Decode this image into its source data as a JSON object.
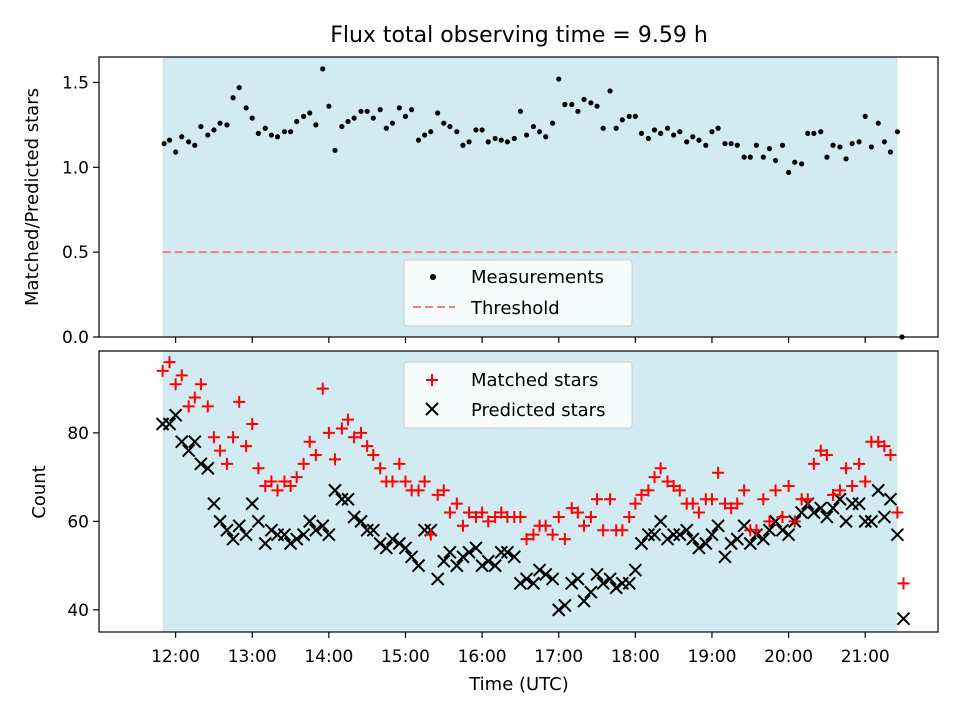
{
  "colors": {
    "night_band": "#add8e6",
    "measurement": "#000000",
    "threshold": "#f08080",
    "matched": "#ff0000",
    "predicted": "#000000"
  },
  "chart_data": [
    {
      "type": "scatter",
      "title": "Flux total observing time = 9.59 h",
      "xlabel": "",
      "ylabel": "Matched/Predicted stars",
      "x_unit": "hours UTC (decimal)",
      "xlim": [
        11.0,
        21.95
      ],
      "ylim": [
        0,
        1.65
      ],
      "yticks": [
        0.0,
        0.5,
        1.0,
        1.5
      ],
      "ytick_labels": [
        "0.0",
        "0.5",
        "1.0",
        "1.5"
      ],
      "shaded_interval": [
        11.83,
        21.42
      ],
      "grid": false,
      "legend": {
        "position": "lower center",
        "entries": [
          "Measurements",
          "Threshold"
        ]
      },
      "threshold": {
        "name": "Threshold",
        "value": 0.5,
        "x_range": [
          11.83,
          21.42
        ]
      },
      "series": [
        {
          "name": "Measurements",
          "x": [
            11.85,
            11.92,
            12.0,
            12.08,
            12.17,
            12.25,
            12.33,
            12.42,
            12.5,
            12.58,
            12.67,
            12.75,
            12.83,
            12.92,
            13.0,
            13.08,
            13.17,
            13.25,
            13.33,
            13.42,
            13.5,
            13.58,
            13.67,
            13.75,
            13.83,
            13.92,
            14.0,
            14.08,
            14.17,
            14.25,
            14.33,
            14.42,
            14.5,
            14.58,
            14.67,
            14.75,
            14.83,
            14.92,
            15.0,
            15.08,
            15.17,
            15.25,
            15.33,
            15.42,
            15.5,
            15.58,
            15.67,
            15.75,
            15.83,
            15.92,
            16.0,
            16.08,
            16.17,
            16.25,
            16.33,
            16.42,
            16.5,
            16.58,
            16.67,
            16.75,
            16.83,
            16.92,
            17.0,
            17.08,
            17.17,
            17.25,
            17.33,
            17.42,
            17.5,
            17.58,
            17.67,
            17.75,
            17.83,
            17.92,
            18.0,
            18.08,
            18.17,
            18.25,
            18.33,
            18.42,
            18.5,
            18.58,
            18.67,
            18.75,
            18.83,
            18.92,
            19.0,
            19.08,
            19.17,
            19.25,
            19.33,
            19.42,
            19.5,
            19.58,
            19.67,
            19.75,
            19.83,
            19.92,
            20.0,
            20.08,
            20.17,
            20.25,
            20.33,
            20.42,
            20.5,
            20.58,
            20.67,
            20.75,
            20.83,
            20.92,
            21.0,
            21.08,
            21.17,
            21.25,
            21.33,
            21.42,
            21.48
          ],
          "y": [
            1.14,
            1.16,
            1.09,
            1.18,
            1.15,
            1.13,
            1.24,
            1.19,
            1.22,
            1.26,
            1.25,
            1.41,
            1.47,
            1.35,
            1.29,
            1.2,
            1.23,
            1.19,
            1.18,
            1.21,
            1.21,
            1.27,
            1.3,
            1.32,
            1.25,
            1.58,
            1.36,
            1.1,
            1.24,
            1.27,
            1.29,
            1.33,
            1.33,
            1.29,
            1.34,
            1.23,
            1.26,
            1.35,
            1.3,
            1.34,
            1.16,
            1.19,
            1.21,
            1.32,
            1.26,
            1.24,
            1.21,
            1.13,
            1.15,
            1.22,
            1.22,
            1.15,
            1.17,
            1.16,
            1.15,
            1.17,
            1.33,
            1.19,
            1.24,
            1.21,
            1.18,
            1.26,
            1.52,
            1.37,
            1.37,
            1.33,
            1.4,
            1.38,
            1.36,
            1.23,
            1.45,
            1.23,
            1.28,
            1.3,
            1.3,
            1.2,
            1.17,
            1.22,
            1.2,
            1.23,
            1.19,
            1.21,
            1.15,
            1.18,
            1.16,
            1.13,
            1.21,
            1.23,
            1.14,
            1.14,
            1.13,
            1.06,
            1.06,
            1.13,
            1.06,
            1.11,
            1.04,
            1.13,
            0.97,
            1.03,
            1.02,
            1.2,
            1.2,
            1.21,
            1.06,
            1.13,
            1.12,
            1.05,
            1.14,
            1.15,
            1.3,
            1.12,
            1.26,
            1.15,
            1.09,
            1.21,
            0.0
          ]
        }
      ]
    },
    {
      "type": "scatter",
      "title": "",
      "xlabel": "Time (UTC)",
      "ylabel": "Count",
      "x_unit": "hours UTC (decimal)",
      "xlim": [
        11.0,
        21.95
      ],
      "ylim": [
        35,
        98.5
      ],
      "xticks": [
        12,
        13,
        14,
        15,
        16,
        17,
        18,
        19,
        20,
        21
      ],
      "xtick_labels": [
        "12:00",
        "13:00",
        "14:00",
        "15:00",
        "16:00",
        "17:00",
        "18:00",
        "19:00",
        "20:00",
        "21:00"
      ],
      "yticks": [
        40,
        60,
        80
      ],
      "ytick_labels": [
        "40",
        "60",
        "80"
      ],
      "shaded_interval": [
        11.83,
        21.42
      ],
      "grid": false,
      "legend": {
        "position": "upper center",
        "entries": [
          "Matched stars",
          "Predicted stars"
        ]
      },
      "series": [
        {
          "name": "Matched stars",
          "marker": "+",
          "x": [
            11.83,
            11.92,
            12.0,
            12.08,
            12.17,
            12.25,
            12.33,
            12.42,
            12.5,
            12.58,
            12.67,
            12.75,
            12.83,
            12.92,
            13.0,
            13.08,
            13.17,
            13.25,
            13.33,
            13.42,
            13.5,
            13.58,
            13.67,
            13.75,
            13.83,
            13.92,
            14.0,
            14.08,
            14.17,
            14.25,
            14.33,
            14.42,
            14.5,
            14.58,
            14.67,
            14.75,
            14.83,
            14.92,
            15.0,
            15.08,
            15.17,
            15.25,
            15.33,
            15.42,
            15.5,
            15.58,
            15.67,
            15.75,
            15.83,
            15.92,
            16.0,
            16.08,
            16.17,
            16.25,
            16.33,
            16.42,
            16.5,
            16.58,
            16.67,
            16.75,
            16.83,
            16.92,
            17.0,
            17.08,
            17.17,
            17.25,
            17.33,
            17.42,
            17.5,
            17.58,
            17.67,
            17.75,
            17.83,
            17.92,
            18.0,
            18.08,
            18.17,
            18.25,
            18.33,
            18.42,
            18.5,
            18.58,
            18.67,
            18.75,
            18.83,
            18.92,
            19.0,
            19.08,
            19.17,
            19.25,
            19.33,
            19.42,
            19.5,
            19.58,
            19.67,
            19.75,
            19.83,
            19.92,
            20.0,
            20.08,
            20.17,
            20.25,
            20.33,
            20.42,
            20.5,
            20.58,
            20.67,
            20.75,
            20.83,
            20.92,
            21.0,
            21.08,
            21.17,
            21.25,
            21.33,
            21.42,
            21.5
          ],
          "y": [
            94,
            96,
            91,
            93,
            86,
            88,
            91,
            86,
            79,
            76,
            73,
            79,
            87,
            77,
            82,
            72,
            68,
            69,
            67,
            69,
            68,
            70,
            73,
            78,
            75,
            90,
            80,
            74,
            81,
            83,
            79,
            80,
            77,
            75,
            72,
            69,
            69,
            73,
            69,
            67,
            67,
            69,
            57,
            66,
            67,
            62,
            64,
            59,
            62,
            61,
            62,
            60,
            61,
            62,
            61,
            61,
            61,
            56,
            57,
            59,
            59,
            57,
            61,
            56,
            63,
            62,
            59,
            61,
            65,
            58,
            65,
            58,
            58,
            61,
            64,
            66,
            67,
            70,
            72,
            69,
            68,
            67,
            64,
            64,
            62,
            65,
            65,
            71,
            64,
            63,
            64,
            67,
            58,
            58,
            65,
            60,
            67,
            61,
            68,
            60,
            65,
            65,
            73,
            76,
            75,
            66,
            67,
            72,
            68,
            73,
            69,
            78,
            78,
            77,
            75,
            62,
            46
          ]
        },
        {
          "name": "Predicted stars",
          "marker": "x",
          "x": [
            11.83,
            11.92,
            12.0,
            12.08,
            12.17,
            12.25,
            12.33,
            12.42,
            12.5,
            12.58,
            12.67,
            12.75,
            12.83,
            12.92,
            13.0,
            13.08,
            13.17,
            13.25,
            13.33,
            13.42,
            13.5,
            13.58,
            13.67,
            13.75,
            13.83,
            13.92,
            14.0,
            14.08,
            14.17,
            14.25,
            14.33,
            14.42,
            14.5,
            14.58,
            14.67,
            14.75,
            14.83,
            14.92,
            15.0,
            15.08,
            15.17,
            15.25,
            15.33,
            15.42,
            15.5,
            15.58,
            15.67,
            15.75,
            15.83,
            15.92,
            16.0,
            16.08,
            16.17,
            16.25,
            16.33,
            16.42,
            16.5,
            16.58,
            16.67,
            16.75,
            16.83,
            16.92,
            17.0,
            17.08,
            17.17,
            17.25,
            17.33,
            17.42,
            17.5,
            17.58,
            17.67,
            17.75,
            17.83,
            17.92,
            18.0,
            18.08,
            18.17,
            18.25,
            18.33,
            18.42,
            18.5,
            18.58,
            18.67,
            18.75,
            18.83,
            18.92,
            19.0,
            19.08,
            19.17,
            19.25,
            19.33,
            19.42,
            19.5,
            19.58,
            19.67,
            19.75,
            19.83,
            19.92,
            20.0,
            20.08,
            20.17,
            20.25,
            20.33,
            20.42,
            20.5,
            20.58,
            20.67,
            20.75,
            20.83,
            20.92,
            21.0,
            21.08,
            21.17,
            21.25,
            21.33,
            21.42,
            21.5
          ],
          "y": [
            82,
            82,
            84,
            78,
            76,
            78,
            73,
            72,
            64,
            60,
            58,
            56,
            59,
            57,
            64,
            60,
            55,
            58,
            57,
            57,
            55,
            56,
            57,
            60,
            58,
            59,
            57,
            67,
            65,
            65,
            61,
            60,
            58,
            58,
            55,
            54,
            56,
            55,
            54,
            52,
            50,
            58,
            58,
            47,
            51,
            53,
            50,
            52,
            53,
            54,
            50,
            51,
            50,
            53,
            53,
            52,
            46,
            47,
            46,
            49,
            48,
            47,
            40,
            41,
            46,
            47,
            42,
            44,
            48,
            46,
            47,
            45,
            46,
            46,
            49,
            55,
            57,
            57,
            60,
            56,
            57,
            57,
            58,
            56,
            54,
            55,
            57,
            59,
            52,
            55,
            56,
            59,
            55,
            57,
            56,
            58,
            60,
            58,
            57,
            60,
            62,
            64,
            62,
            63,
            61,
            63,
            65,
            60,
            64,
            64,
            60,
            60,
            67,
            61,
            65,
            57,
            38
          ]
        }
      ]
    }
  ]
}
